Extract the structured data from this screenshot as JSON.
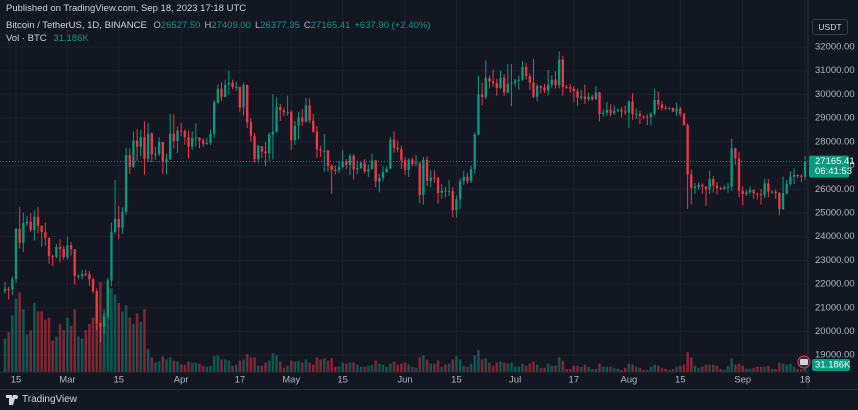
{
  "header": {
    "published": "Published on TradingView.com, Sep 18, 2023 17:18 UTC"
  },
  "footer": {
    "brand": "TradingView"
  },
  "chart_data": {
    "type": "candlestick",
    "legend": {
      "symbol": "Bitcoin / TetherUS, 1D, BINANCE",
      "ohlc": [
        {
          "key": "O",
          "value": "26527.50"
        },
        {
          "key": "H",
          "value": "27409.00"
        },
        {
          "key": "L",
          "value": "26377.35"
        },
        {
          "key": "C",
          "value": "27165.41"
        }
      ],
      "change": "+637.90 (+2.40%)",
      "volume_title": "Vol · BTC",
      "volume_value": "31.186K"
    },
    "currency": "USDT",
    "price_tag": {
      "price": "27165.41",
      "countdown": "06:41:53"
    },
    "up_color": "#089981",
    "down_color": "#f23645",
    "grid": true,
    "xlim": [
      -1.36,
      218.8
    ],
    "xticks": [
      {
        "value": 3,
        "label": "15"
      },
      {
        "value": 17,
        "label": "Mar"
      },
      {
        "value": 31,
        "label": "15"
      },
      {
        "value": 48,
        "label": "Apr"
      },
      {
        "value": 64,
        "label": "17"
      },
      {
        "value": 78,
        "label": "May"
      },
      {
        "value": 92,
        "label": "15"
      },
      {
        "value": 109,
        "label": "Jun"
      },
      {
        "value": 123,
        "label": "15"
      },
      {
        "value": 139,
        "label": "Jul"
      },
      {
        "value": 155,
        "label": "17"
      },
      {
        "value": 170,
        "label": "Aug"
      },
      {
        "value": 184,
        "label": "15"
      },
      {
        "value": 201,
        "label": "Sep"
      },
      {
        "value": 218,
        "label": "18"
      }
    ],
    "ylim": [
      18290,
      33140
    ],
    "yticks": [
      {
        "value": 19000,
        "label": "19000.00"
      },
      {
        "value": 20000,
        "label": "20000.00"
      },
      {
        "value": 21000,
        "label": "21000.00"
      },
      {
        "value": 22000,
        "label": "22000.00"
      },
      {
        "value": 23000,
        "label": "23000.00"
      },
      {
        "value": 24000,
        "label": "24000.00"
      },
      {
        "value": 25000,
        "label": "25000.00"
      },
      {
        "value": 26000,
        "label": "26000.00"
      },
      {
        "value": 27000,
        "label": "27000.00"
      },
      {
        "value": 28000,
        "label": "28000.00"
      },
      {
        "value": 29000,
        "label": "29000.00"
      },
      {
        "value": 30000,
        "label": "30000.00"
      },
      {
        "value": 31000,
        "label": "31000.00"
      },
      {
        "value": 32000,
        "label": "32000.00"
      }
    ],
    "open": [
      21700,
      21800,
      21790,
      22200,
      24330,
      23740,
      24570,
      24630,
      24290,
      24840,
      24450,
      24190,
      23950,
      23180,
      23150,
      23560,
      23490,
      23140,
      23640,
      23470,
      22350,
      22350,
      22430,
      22410,
      22200,
      21700,
      20360,
      20190,
      20630,
      22150,
      24200,
      24750,
      24380,
      25050,
      27450,
      26950,
      28050,
      27800,
      28200,
      27280,
      28350,
      27480,
      27500,
      27990,
      27140,
      27260,
      28350,
      28030,
      28480,
      28450,
      28200,
      27800,
      28170,
      28180,
      28050,
      27920,
      27950,
      28340,
      29660,
      30240,
      29900,
      30400,
      30490,
      30320,
      30320,
      29450,
      30400,
      28820,
      28250,
      27270,
      27820,
      27590,
      27520,
      28310,
      28430,
      29480,
      29340,
      29250,
      29250,
      28070,
      28680,
      29030,
      28850,
      29540,
      28900,
      28430,
      27680,
      27630,
      27630,
      26990,
      26810,
      26800,
      26930,
      27180,
      27030,
      27410,
      26830,
      26890,
      27110,
      26750,
      26850,
      27220,
      26330,
      26480,
      26720,
      26870,
      28090,
      27750,
      27700,
      27220,
      26820,
      27250,
      27070,
      27120,
      25760,
      27240,
      26350,
      26500,
      26480,
      25850,
      25940,
      25900,
      25920,
      25120,
      25580,
      26340,
      26520,
      26340,
      26850,
      28310,
      30000,
      29890,
      30690,
      30550,
      30480,
      30270,
      30700,
      30080,
      30450,
      30480,
      30590,
      30620,
      31160,
      30770,
      30510,
      29900,
      30350,
      30290,
      30170,
      30410,
      30620,
      30390,
      31470,
      30320,
      30300,
      30250,
      30140,
      29860,
      29910,
      29800,
      29910,
      29800,
      30080,
      29180,
      29230,
      29350,
      29220,
      29310,
      29350,
      29280,
      29230,
      29700,
      29170,
      29180,
      29090,
      29050,
      29040,
      29180,
      29770,
      29580,
      29430,
      29400,
      29420,
      29280,
      29400,
      29170,
      28700,
      26620,
      26050,
      26100,
      26190,
      26120,
      25990,
      26430,
      26160,
      26050,
      26010,
      26090,
      26110,
      27720,
      27300,
      25940,
      25800,
      25870,
      25970,
      25820,
      25790,
      25750,
      26240,
      25900,
      25900,
      25840,
      25160,
      25840,
      26220,
      26530,
      26600,
      26570,
      26527.5
    ],
    "high": [
      22090,
      21890,
      22320,
      24380,
      25250,
      25020,
      24880,
      25000,
      25120,
      25250,
      24480,
      24600,
      23950,
      23240,
      23690,
      23890,
      23600,
      24000,
      23780,
      23480,
      22410,
      22610,
      22600,
      22550,
      22270,
      21820,
      20370,
      20930,
      22250,
      24600,
      26390,
      25300,
      25240,
      27750,
      27730,
      28450,
      28530,
      28500,
      28870,
      28800,
      28400,
      27800,
      28200,
      28000,
      27500,
      29180,
      29160,
      28650,
      28800,
      28530,
      28480,
      28440,
      28780,
      28200,
      28150,
      28170,
      28530,
      29770,
      30420,
      30500,
      30620,
      31000,
      30620,
      30550,
      30320,
      30490,
      30420,
      29000,
      28370,
      27880,
      27820,
      28000,
      28400,
      30020,
      29880,
      29600,
      29450,
      29950,
      29340,
      28880,
      29270,
      29380,
      29850,
      29840,
      29180,
      28670,
      27840,
      28330,
      27660,
      27050,
      26990,
      27200,
      27670,
      27280,
      27500,
      27480,
      27190,
      27160,
      27270,
      27050,
      27500,
      27230,
      26650,
      26950,
      26970,
      28200,
      28450,
      28050,
      27840,
      27350,
      27300,
      27340,
      27450,
      27130,
      27360,
      27370,
      26800,
      26800,
      26530,
      26210,
      26100,
      26400,
      26090,
      25750,
      26480,
      26780,
      26690,
      26990,
      28400,
      30800,
      30500,
      31430,
      30800,
      31050,
      30660,
      31010,
      30850,
      31280,
      31280,
      30660,
      30790,
      31400,
      31330,
      30890,
      31500,
      30450,
      30380,
      30450,
      31040,
      30800,
      30980,
      31820,
      31630,
      30400,
      30450,
      30340,
      30240,
      30190,
      30420,
      30060,
      29990,
      30350,
      30100,
      29370,
      29690,
      29570,
      29530,
      29410,
      29460,
      29530,
      29740,
      30050,
      29410,
      29310,
      29110,
      29170,
      29250,
      30250,
      30130,
      29730,
      29530,
      29470,
      29450,
      29660,
      29480,
      29230,
      28780,
      26830,
      26260,
      26290,
      26250,
      26130,
      26790,
      26560,
      26300,
      26110,
      26170,
      26250,
      28140,
      27760,
      27580,
      26130,
      25980,
      26120,
      26000,
      25860,
      26000,
      26450,
      26430,
      25940,
      26000,
      25880,
      26540,
      26400,
      26770,
      26890,
      26620,
      26630,
      27409
    ],
    "low": [
      21600,
      21350,
      21530,
      22050,
      23500,
      23350,
      24440,
      24200,
      23840,
      24150,
      23580,
      23620,
      22850,
      22750,
      23080,
      22930,
      23030,
      23030,
      23200,
      21970,
      22200,
      22200,
      22320,
      21930,
      21600,
      20050,
      19550,
      19900,
      20540,
      21900,
      24100,
      23900,
      24130,
      24930,
      26650,
      26900,
      27200,
      27380,
      26600,
      27150,
      27150,
      27250,
      27400,
      26640,
      26630,
      27250,
      27720,
      27530,
      28250,
      27880,
      27300,
      27660,
      27800,
      27730,
      27790,
      27880,
      27870,
      28180,
      29610,
      29720,
      29880,
      30000,
      30230,
      30150,
      29270,
      29100,
      28580,
      28010,
      27130,
      27130,
      27330,
      26970,
      27200,
      27250,
      28380,
      28880,
      29080,
      29100,
      27660,
      27870,
      28120,
      28670,
      28820,
      28800,
      28380,
      27330,
      27370,
      26750,
      26750,
      25810,
      26620,
      26680,
      26880,
      26850,
      26600,
      26420,
      26640,
      26860,
      26660,
      26510,
      26830,
      26090,
      25870,
      26340,
      26700,
      26870,
      27550,
      27560,
      26850,
      26600,
      26520,
      26970,
      26970,
      25400,
      25350,
      26130,
      26100,
      26270,
      25390,
      25600,
      25650,
      25720,
      24820,
      24800,
      25170,
      26190,
      26250,
      26270,
      26660,
      28270,
      29550,
      29800,
      30250,
      30320,
      29940,
      30230,
      29940,
      30050,
      29500,
      30330,
      30200,
      30580,
      30630,
      30190,
      29850,
      29700,
      30050,
      30060,
      29950,
      30280,
      30250,
      30250,
      29950,
      30250,
      30070,
      29660,
      29520,
      29760,
      29600,
      29720,
      29740,
      29770,
      28860,
      29050,
      29090,
      29080,
      29130,
      29260,
      29030,
      29120,
      28590,
      28930,
      28960,
      28750,
      28960,
      28700,
      28700,
      29110,
      29350,
      29320,
      29350,
      29360,
      29250,
      29100,
      29060,
      28700,
      25170,
      25360,
      25800,
      25970,
      25810,
      25300,
      25800,
      25860,
      25780,
      25970,
      25960,
      25860,
      25920,
      27030,
      25660,
      25330,
      25720,
      25800,
      25600,
      25580,
      25350,
      25630,
      25650,
      25800,
      25600,
      24900,
      25130,
      25760,
      26130,
      26230,
      26470,
      26300,
      26377.35
    ],
    "close": [
      21800,
      21790,
      22200,
      24330,
      23740,
      24570,
      24630,
      24290,
      24840,
      24450,
      24190,
      23950,
      23180,
      23150,
      23560,
      23490,
      23140,
      23640,
      23470,
      22350,
      22350,
      22430,
      22410,
      22200,
      21700,
      20360,
      20190,
      20630,
      22150,
      24200,
      24750,
      24380,
      25050,
      27450,
      26950,
      28050,
      27800,
      28200,
      27280,
      28350,
      27480,
      27500,
      27990,
      27140,
      27260,
      28350,
      28030,
      28480,
      28450,
      28200,
      27800,
      28170,
      28180,
      28050,
      27920,
      27950,
      28340,
      29660,
      30240,
      29900,
      30400,
      30490,
      30320,
      30320,
      29450,
      30400,
      28820,
      28250,
      27270,
      27820,
      27590,
      27520,
      28310,
      28430,
      29480,
      29340,
      29250,
      29250,
      28070,
      28680,
      29030,
      28850,
      29540,
      28900,
      28430,
      27680,
      27630,
      27630,
      26990,
      26810,
      26800,
      26930,
      27180,
      27030,
      27410,
      26830,
      26890,
      27110,
      26750,
      26850,
      27220,
      26330,
      26480,
      26720,
      26870,
      28090,
      27750,
      27700,
      27220,
      26820,
      27250,
      27070,
      27120,
      25760,
      27240,
      26350,
      26500,
      26480,
      25850,
      25940,
      25900,
      25920,
      25120,
      25580,
      26340,
      26520,
      26340,
      26850,
      28310,
      30000,
      29890,
      30690,
      30550,
      30480,
      30270,
      30700,
      30080,
      30450,
      30480,
      30590,
      30620,
      31160,
      30770,
      30510,
      29900,
      30350,
      30290,
      30170,
      30410,
      30620,
      30390,
      31470,
      30320,
      30300,
      30250,
      30140,
      29860,
      29910,
      29800,
      29910,
      29800,
      30080,
      29180,
      29230,
      29350,
      29220,
      29310,
      29350,
      29280,
      29230,
      29700,
      29170,
      29180,
      29090,
      29050,
      29040,
      29180,
      29770,
      29580,
      29430,
      29400,
      29420,
      29280,
      29400,
      29170,
      28700,
      26620,
      26050,
      26100,
      26190,
      26120,
      25990,
      26430,
      26160,
      26050,
      26010,
      26090,
      26110,
      27720,
      27300,
      25940,
      25800,
      25870,
      25970,
      25820,
      25790,
      25750,
      26240,
      25900,
      25900,
      25840,
      25160,
      25840,
      26220,
      26530,
      26600,
      26570,
      26527.5,
      27165.41
    ],
    "volume": [
      160000,
      190000,
      270000,
      350000,
      380000,
      300000,
      180000,
      200000,
      330000,
      290000,
      290000,
      250000,
      260000,
      150000,
      170000,
      230000,
      200000,
      260000,
      220000,
      300000,
      170000,
      160000,
      200000,
      230000,
      260000,
      330000,
      430000,
      280000,
      330000,
      400000,
      370000,
      330000,
      290000,
      320000,
      260000,
      230000,
      280000,
      240000,
      300000,
      110000,
      70000,
      45000,
      50000,
      75000,
      60000,
      70000,
      55000,
      50000,
      35000,
      35000,
      50000,
      45000,
      45000,
      40000,
      30000,
      25000,
      30000,
      75000,
      80000,
      60000,
      60000,
      55000,
      30000,
      35000,
      55000,
      60000,
      85000,
      70000,
      70000,
      30000,
      30000,
      45000,
      55000,
      90000,
      80000,
      50000,
      20000,
      30000,
      55000,
      50000,
      55000,
      45000,
      60000,
      45000,
      35000,
      70000,
      60000,
      65000,
      55000,
      65000,
      25000,
      25000,
      45000,
      40000,
      45000,
      45000,
      35000,
      25000,
      25000,
      30000,
      35000,
      55000,
      40000,
      35000,
      25000,
      40000,
      50000,
      35000,
      40000,
      45000,
      35000,
      25000,
      20000,
      70000,
      80000,
      60000,
      40000,
      40000,
      55000,
      25000,
      35000,
      40000,
      60000,
      75000,
      60000,
      30000,
      25000,
      40000,
      80000,
      105000,
      60000,
      65000,
      45000,
      30000,
      45000,
      50000,
      45000,
      40000,
      45000,
      25000,
      25000,
      40000,
      30000,
      40000,
      50000,
      35000,
      20000,
      20000,
      40000,
      30000,
      30000,
      70000,
      55000,
      15000,
      15000,
      30000,
      30000,
      25000,
      35000,
      25000,
      15000,
      15000,
      40000,
      25000,
      25000,
      25000,
      20000,
      15000,
      10000,
      20000,
      40000,
      35000,
      25000,
      20000,
      10000,
      10000,
      25000,
      35000,
      30000,
      20000,
      15000,
      10000,
      15000,
      25000,
      30000,
      35000,
      95000,
      70000,
      30000,
      20000,
      25000,
      35000,
      35000,
      35000,
      30000,
      15000,
      10000,
      30000,
      65000,
      35000,
      40000,
      30000,
      15000,
      15000,
      20000,
      25000,
      25000,
      25000,
      30000,
      15000,
      15000,
      45000,
      40000,
      35000,
      40000,
      25000,
      15000,
      15000,
      31186
    ]
  }
}
